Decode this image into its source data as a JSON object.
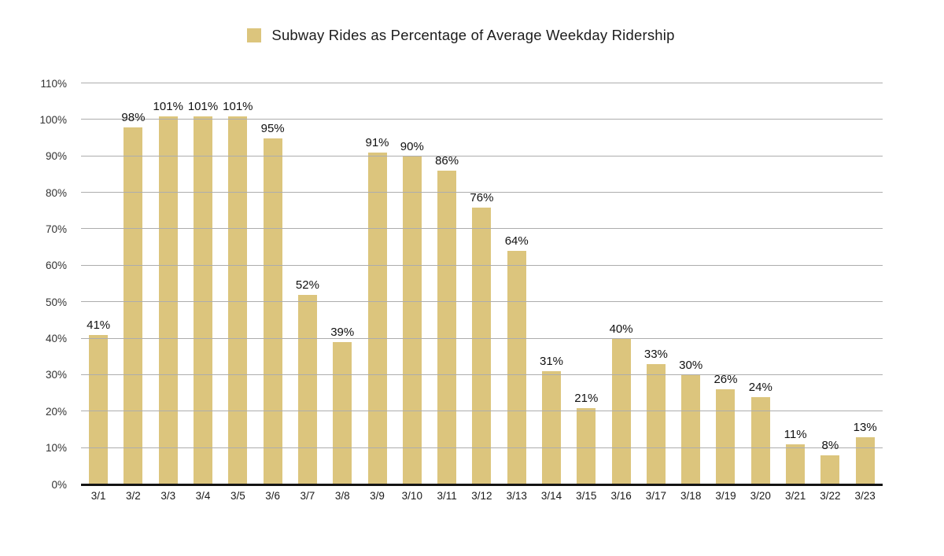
{
  "chart_data": {
    "type": "bar",
    "title": "Subway Rides as Percentage of Average Weekday Ridership",
    "categories": [
      "3/1",
      "3/2",
      "3/3",
      "3/4",
      "3/5",
      "3/6",
      "3/7",
      "3/8",
      "3/9",
      "3/10",
      "3/11",
      "3/12",
      "3/13",
      "3/14",
      "3/15",
      "3/16",
      "3/17",
      "3/18",
      "3/19",
      "3/20",
      "3/21",
      "3/22",
      "3/23"
    ],
    "values": [
      41,
      98,
      101,
      101,
      101,
      95,
      52,
      39,
      91,
      90,
      86,
      76,
      64,
      31,
      21,
      40,
      33,
      30,
      26,
      24,
      11,
      8,
      13
    ],
    "value_suffix": "%",
    "data_labels_visible": true,
    "xlabel": "",
    "ylabel": "",
    "ylim": [
      0,
      110
    ],
    "ytick_step": 10,
    "ytick_labels": [
      "0%",
      "10%",
      "20%",
      "30%",
      "40%",
      "50%",
      "60%",
      "70%",
      "80%",
      "90%",
      "100%",
      "110%"
    ],
    "grid": true,
    "gridlines_over_bars": true,
    "legend_position": "top",
    "colors": {
      "bar": "#dcc57d",
      "gridline": "#adadad",
      "axis_line": "#141414",
      "data_label": "#111111",
      "tick_label": "#333333",
      "background": "#ffffff"
    }
  }
}
